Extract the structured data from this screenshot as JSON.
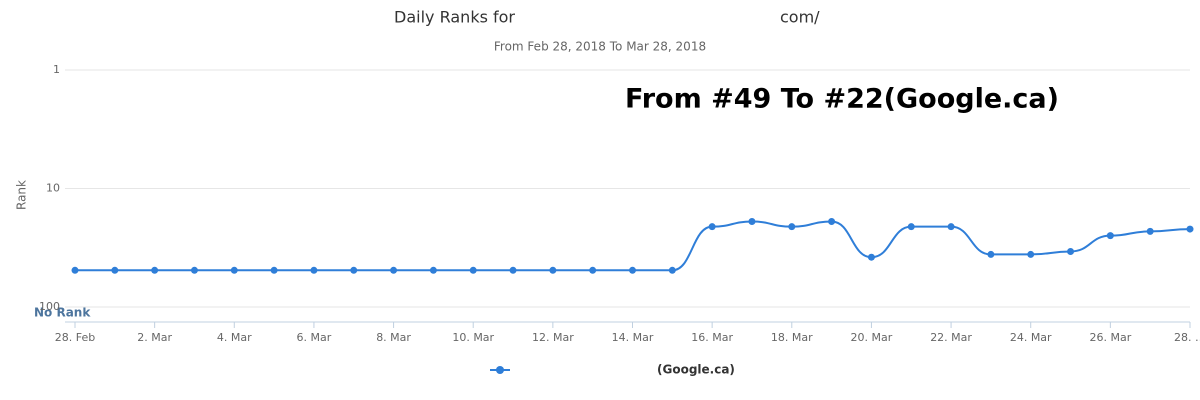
{
  "chart_data": {
    "type": "line",
    "title": "Daily Ranks for",
    "title_tail": "com/",
    "subtitle": "From Feb 28, 2018 To Mar 28, 2018",
    "annotation": "From #49 To #22(Google.ca)",
    "y_label": "Rank",
    "y_floor_label": "No Rank",
    "log_scale": true,
    "reversed": true,
    "grid": true,
    "categories": [
      "28. Feb",
      null,
      "2. Mar",
      null,
      "4. Mar",
      null,
      "6. Mar",
      null,
      "8. Mar",
      null,
      "10. Mar",
      null,
      "12. Mar",
      null,
      "14. Mar",
      null,
      "16. Mar",
      null,
      "18. Mar",
      null,
      "20. Mar",
      null,
      "22. Mar",
      null,
      "24. Mar",
      null,
      "26. Mar",
      null,
      "28. …"
    ],
    "ylim": [
      1,
      100
    ],
    "yticks": [
      1,
      10,
      100
    ],
    "series": [
      {
        "name": "(Google.ca)",
        "color": "#2f7ed8",
        "values": [
          49,
          49,
          49,
          49,
          49,
          49,
          49,
          49,
          49,
          49,
          49,
          49,
          49,
          49,
          49,
          49,
          21,
          19,
          21,
          19,
          38,
          21,
          21,
          36,
          36,
          34,
          25,
          23,
          22
        ]
      }
    ]
  }
}
